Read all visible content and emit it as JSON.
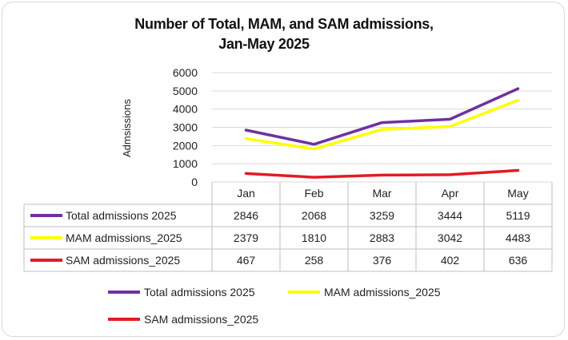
{
  "chart_data": {
    "type": "line",
    "title_line1": "Number of Total, MAM, and SAM admissions,",
    "title_line2": "Jan-May 2025",
    "ylabel": "Admsissions",
    "xlabel": "",
    "categories": [
      "Jan",
      "Feb",
      "Mar",
      "Apr",
      "May"
    ],
    "ylim": [
      0,
      6000
    ],
    "yticks": [
      "6000",
      "5000",
      "4000",
      "3000",
      "2000",
      "1000",
      "0"
    ],
    "grid": true,
    "legend_position": "bottom",
    "series": [
      {
        "name": "Total admissions 2025",
        "values": [
          2846,
          2068,
          3259,
          3444,
          5119
        ],
        "color": "#7030a0"
      },
      {
        "name": "MAM admissions_2025",
        "values": [
          2379,
          1810,
          2883,
          3042,
          4483
        ],
        "color": "#ffff00"
      },
      {
        "name": "SAM admissions_2025",
        "values": [
          467,
          258,
          376,
          402,
          636
        ],
        "color": "#e31b23"
      }
    ]
  }
}
